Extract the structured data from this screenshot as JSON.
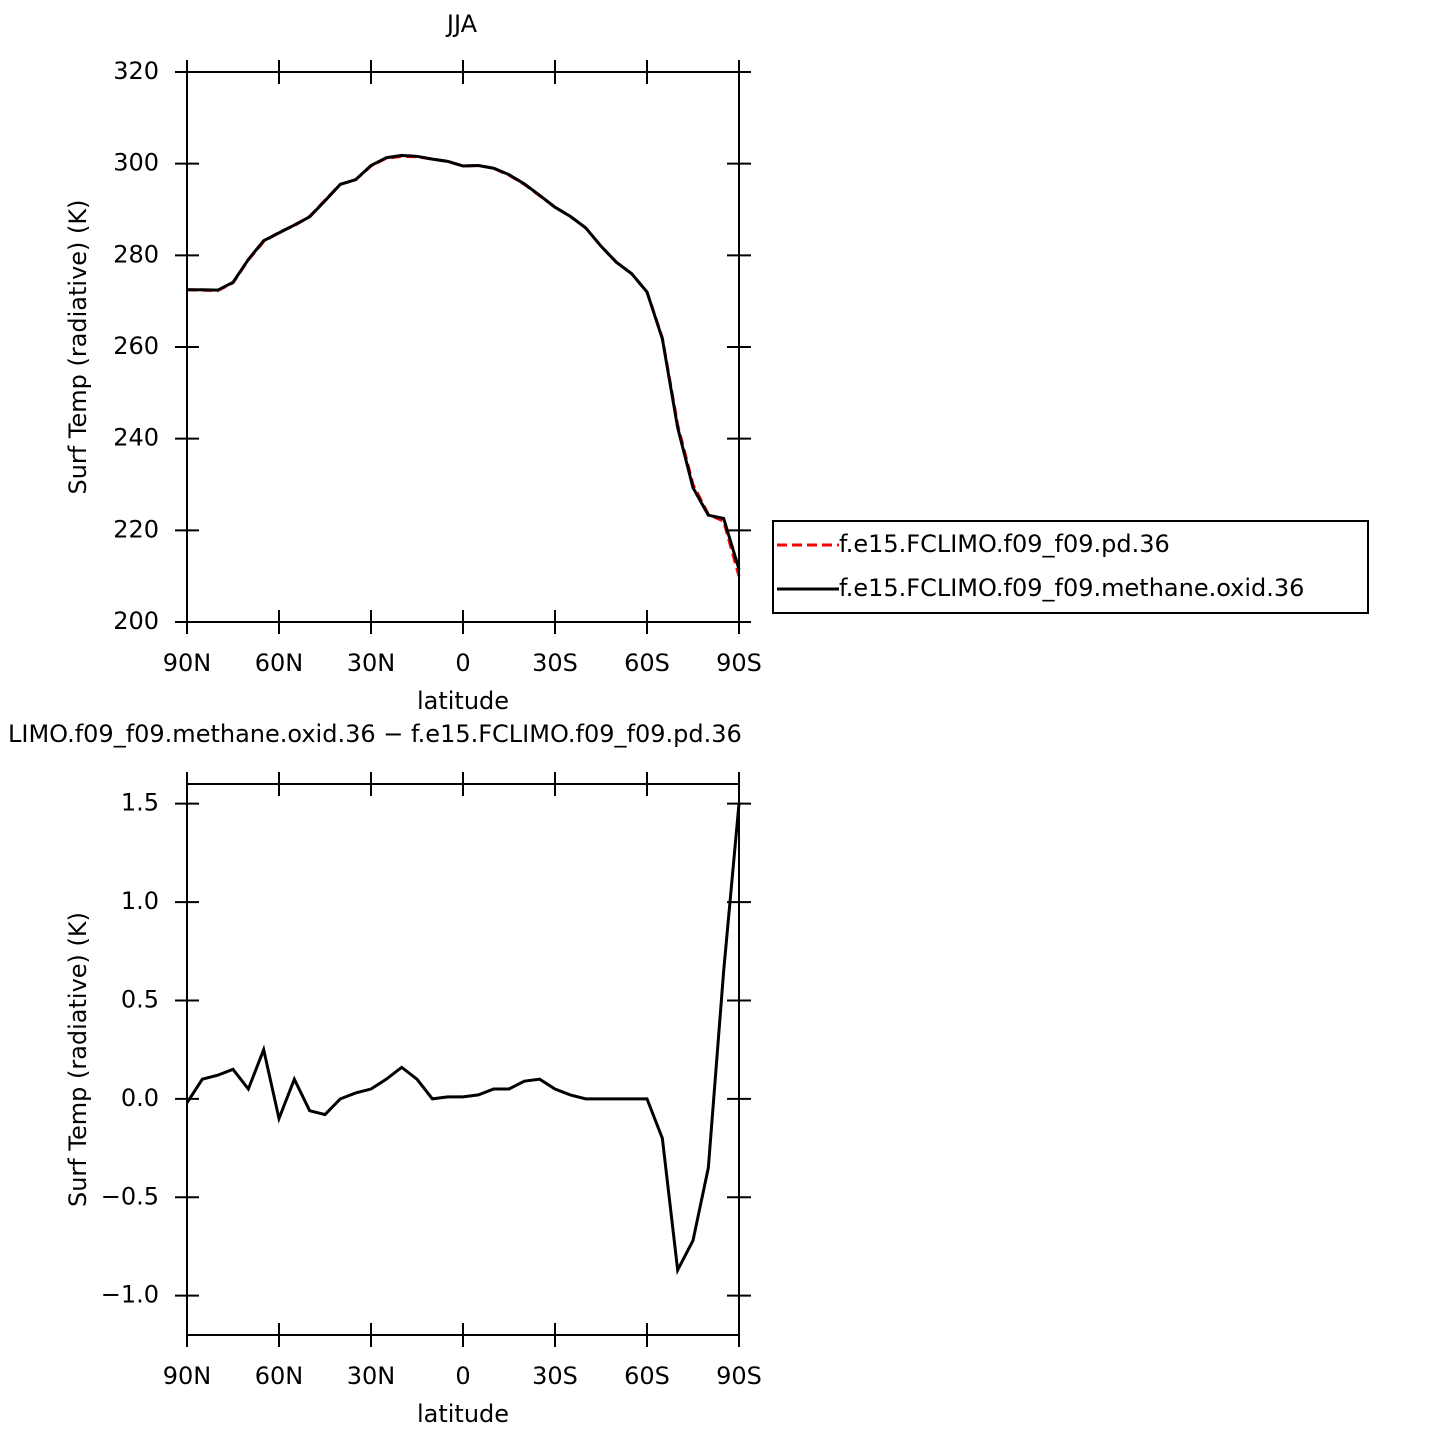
{
  "chart_data": [
    {
      "type": "line",
      "title": "JJA",
      "xlabel": "latitude",
      "ylabel": "Surf Temp (radiative) (K)",
      "x": [
        90,
        85,
        80,
        75,
        70,
        65,
        60,
        55,
        50,
        45,
        40,
        35,
        30,
        25,
        20,
        15,
        10,
        5,
        0,
        -5,
        -10,
        -15,
        -20,
        -25,
        -30,
        -35,
        -40,
        -45,
        -50,
        -55,
        -60,
        -65,
        -70,
        -75,
        -80,
        -85,
        -90
      ],
      "series": [
        {
          "name": "f.e15.FCLIMO.f09_f09.pd.36",
          "color": "#ff0000",
          "dash": "dashed",
          "values": [
            272.5,
            272.4,
            272.3,
            274,
            279,
            283,
            285,
            286.5,
            288.5,
            292,
            295.5,
            296.5,
            299.5,
            301.2,
            301.6,
            301.5,
            301,
            300.5,
            299.5,
            299.6,
            299,
            297.5,
            295.5,
            293,
            290.5,
            288.5,
            286,
            282,
            278.5,
            276,
            272,
            262,
            243,
            230,
            223.5,
            222,
            210
          ]
        },
        {
          "name": "f.e15.FCLIMO.f09_f09.methane.oxid.36",
          "color": "#000000",
          "dash": "solid",
          "values": [
            272.5,
            272.5,
            272.4,
            274.1,
            279.1,
            283.2,
            284.9,
            286.6,
            288.4,
            291.9,
            295.5,
            296.5,
            299.6,
            301.3,
            301.8,
            301.6,
            301,
            300.5,
            299.5,
            299.6,
            299,
            297.6,
            295.6,
            293.1,
            290.5,
            288.5,
            286,
            282,
            278.5,
            276,
            272,
            261.8,
            242.4,
            229.3,
            223.3,
            222.6,
            211.5
          ]
        }
      ],
      "xlim": [
        90,
        -90
      ],
      "xticks": [
        {
          "value": 90,
          "label": "90N"
        },
        {
          "value": 60,
          "label": "60N"
        },
        {
          "value": 30,
          "label": "30N"
        },
        0,
        {
          "value": -30,
          "label": "30S"
        },
        {
          "value": -60,
          "label": "60S"
        },
        {
          "value": -90,
          "label": "90S"
        }
      ],
      "ylim": [
        200,
        320
      ],
      "yticks": [
        200,
        220,
        240,
        260,
        280,
        300,
        320
      ],
      "legend": "right"
    },
    {
      "type": "line",
      "title": "LIMO.f09_f09.methane.oxid.36 − f.e15.FCLIMO.f09_f09.pd.36",
      "xlabel": "latitude",
      "ylabel": "Surf Temp (radiative) (K)",
      "x": [
        90,
        85,
        80,
        75,
        70,
        65,
        60,
        55,
        50,
        45,
        40,
        35,
        30,
        25,
        20,
        15,
        10,
        5,
        0,
        -5,
        -10,
        -15,
        -20,
        -25,
        -30,
        -35,
        -40,
        -45,
        -50,
        -55,
        -60,
        -65,
        -70,
        -75,
        -80,
        -85,
        -90
      ],
      "series": [
        {
          "color": "#000000",
          "dash": "solid",
          "values": [
            -0.02,
            0.1,
            0.12,
            0.15,
            0.05,
            0.25,
            -0.1,
            0.1,
            -0.06,
            -0.08,
            0.0,
            0.03,
            0.05,
            0.1,
            0.16,
            0.1,
            0.0,
            0.01,
            0.01,
            0.02,
            0.05,
            0.05,
            0.09,
            0.1,
            0.05,
            0.02,
            0.0,
            0.0,
            0.0,
            0.0,
            0.0,
            -0.2,
            -0.87,
            -0.72,
            -0.35,
            0.65,
            1.5
          ]
        }
      ],
      "xlim": [
        90,
        -90
      ],
      "xticks": [
        {
          "value": 90,
          "label": "90N"
        },
        {
          "value": 60,
          "label": "60N"
        },
        {
          "value": 30,
          "label": "30N"
        },
        0,
        {
          "value": -30,
          "label": "30S"
        },
        {
          "value": -60,
          "label": "60S"
        },
        {
          "value": -90,
          "label": "90S"
        }
      ],
      "ylim": [
        -1.2,
        1.6
      ],
      "yticks": [
        {
          "value": -1.0,
          "label": "−1.0"
        },
        {
          "value": -0.5,
          "label": "−0.5"
        },
        {
          "value": 0,
          "label": "0.0"
        },
        0.5,
        {
          "value": 1.0,
          "label": "1.0"
        },
        1.5
      ]
    }
  ]
}
